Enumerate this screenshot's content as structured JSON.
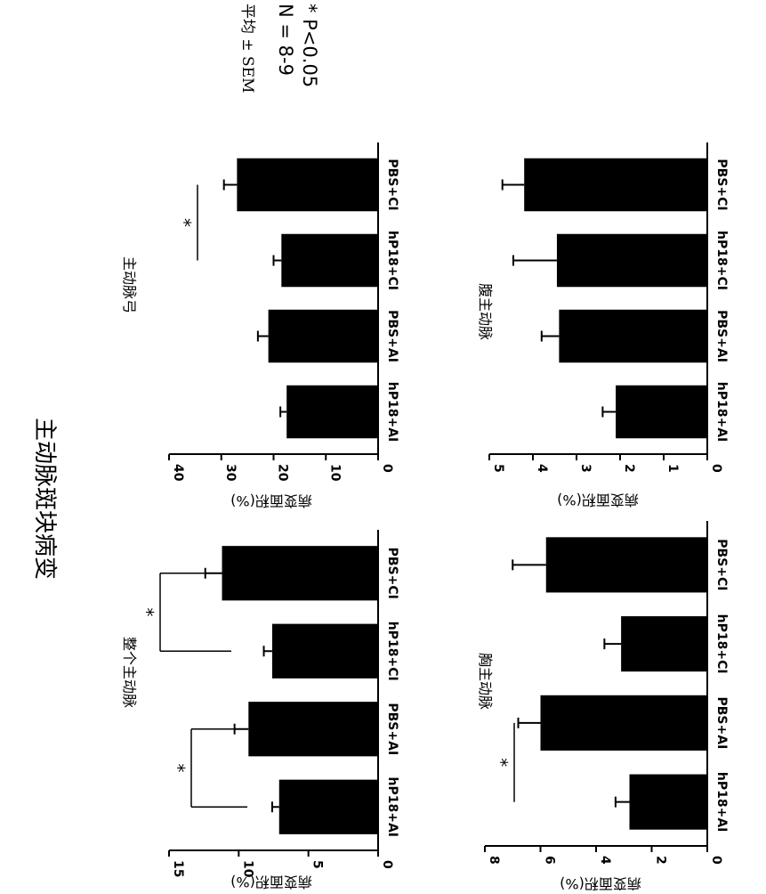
{
  "main_title": "主动脉斑块病变",
  "stats": {
    "mean_sem": "平均 ± SEM",
    "n": "N = 8-9",
    "p": "* P<0.05"
  },
  "chart_data": [
    {
      "type": "bar",
      "title": "整个主动脉",
      "ylabel": "病变面积(%)",
      "categories": [
        "PBS+CI",
        "hP18+CI",
        "PBS+AI",
        "hP18+AI"
      ],
      "values": [
        11.2,
        7.6,
        9.3,
        7.1
      ],
      "errors": [
        1.2,
        0.6,
        1.0,
        0.5
      ],
      "ylim": [
        0,
        15
      ],
      "yticks": [
        "0",
        "5",
        "10",
        "15"
      ],
      "significance": [
        {
          "from": 0,
          "to": 1,
          "label": "*"
        },
        {
          "from": 2,
          "to": 3,
          "label": "*"
        }
      ]
    },
    {
      "type": "bar",
      "title": "主动脉弓",
      "ylabel": "病变面积(%)",
      "categories": [
        "PBS+CI",
        "hP18+CI",
        "PBS+AI",
        "hP18+AI"
      ],
      "values": [
        27,
        18.5,
        21,
        17.5
      ],
      "errors": [
        2.5,
        1.5,
        2.0,
        1.2
      ],
      "ylim": [
        0,
        40
      ],
      "yticks": [
        "0",
        "10",
        "20",
        "30",
        "40"
      ],
      "significance": [
        {
          "from": 0,
          "to": 1,
          "label": "*"
        }
      ]
    },
    {
      "type": "bar",
      "title": "胸主动脉",
      "ylabel": "病变面积(%)",
      "categories": [
        "PBS+CI",
        "hP18+CI",
        "PBS+AI",
        "hP18+AI"
      ],
      "values": [
        5.8,
        3.1,
        6.0,
        2.8
      ],
      "errors": [
        1.2,
        0.6,
        0.8,
        0.5
      ],
      "ylim": [
        0,
        8
      ],
      "yticks": [
        "0",
        "2",
        "4",
        "6",
        "8"
      ],
      "significance": [
        {
          "from": 2,
          "to": 3,
          "label": "*"
        }
      ]
    },
    {
      "type": "bar",
      "title": "腹主动脉",
      "ylabel": "病变面积(%)",
      "categories": [
        "PBS+CI",
        "hP18+CI",
        "PBS+AI",
        "hP18+AI"
      ],
      "values": [
        4.2,
        3.45,
        3.4,
        2.1
      ],
      "errors": [
        0.5,
        1.0,
        0.4,
        0.3
      ],
      "ylim": [
        0,
        5
      ],
      "yticks": [
        "0",
        "1",
        "2",
        "3",
        "4",
        "5"
      ],
      "significance": []
    }
  ]
}
